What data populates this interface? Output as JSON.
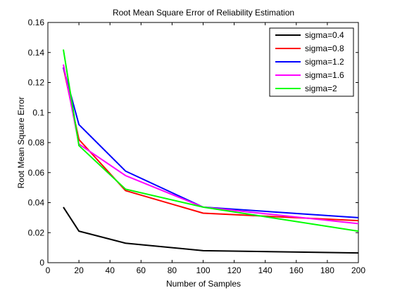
{
  "chart_data": {
    "type": "line",
    "title": "Root Mean Square Error of Reliability Estimation",
    "xlabel": "Number of Samples",
    "ylabel": "Root Mean Square Error",
    "xlim": [
      0,
      200
    ],
    "ylim": [
      0,
      0.16
    ],
    "xticks": [
      0,
      20,
      40,
      60,
      80,
      100,
      120,
      140,
      160,
      180,
      200
    ],
    "yticks": [
      0,
      0.02,
      0.04,
      0.06,
      0.08,
      0.1,
      0.12,
      0.14,
      0.16
    ],
    "ytick_labels": [
      "0",
      "0.02",
      "0.04",
      "0.06",
      "0.08",
      "0.1",
      "0.12",
      "0.14",
      "0.16"
    ],
    "grid": false,
    "legend_position": "top-right",
    "x": [
      10,
      20,
      50,
      100,
      200
    ],
    "series": [
      {
        "name": "sigma=0.4",
        "color": "#000000",
        "values": [
          0.037,
          0.021,
          0.013,
          0.008,
          0.0065
        ]
      },
      {
        "name": "sigma=0.8",
        "color": "#ff0000",
        "values": [
          0.13,
          0.082,
          0.048,
          0.033,
          0.028
        ]
      },
      {
        "name": "sigma=1.2",
        "color": "#0000ff",
        "values": [
          0.13,
          0.092,
          0.061,
          0.037,
          0.03
        ]
      },
      {
        "name": "sigma=1.6",
        "color": "#ff00ff",
        "values": [
          0.132,
          0.079,
          0.058,
          0.037,
          0.026
        ]
      },
      {
        "name": "sigma=2",
        "color": "#00ff00",
        "values": [
          0.142,
          0.078,
          0.049,
          0.037,
          0.021
        ]
      }
    ]
  }
}
